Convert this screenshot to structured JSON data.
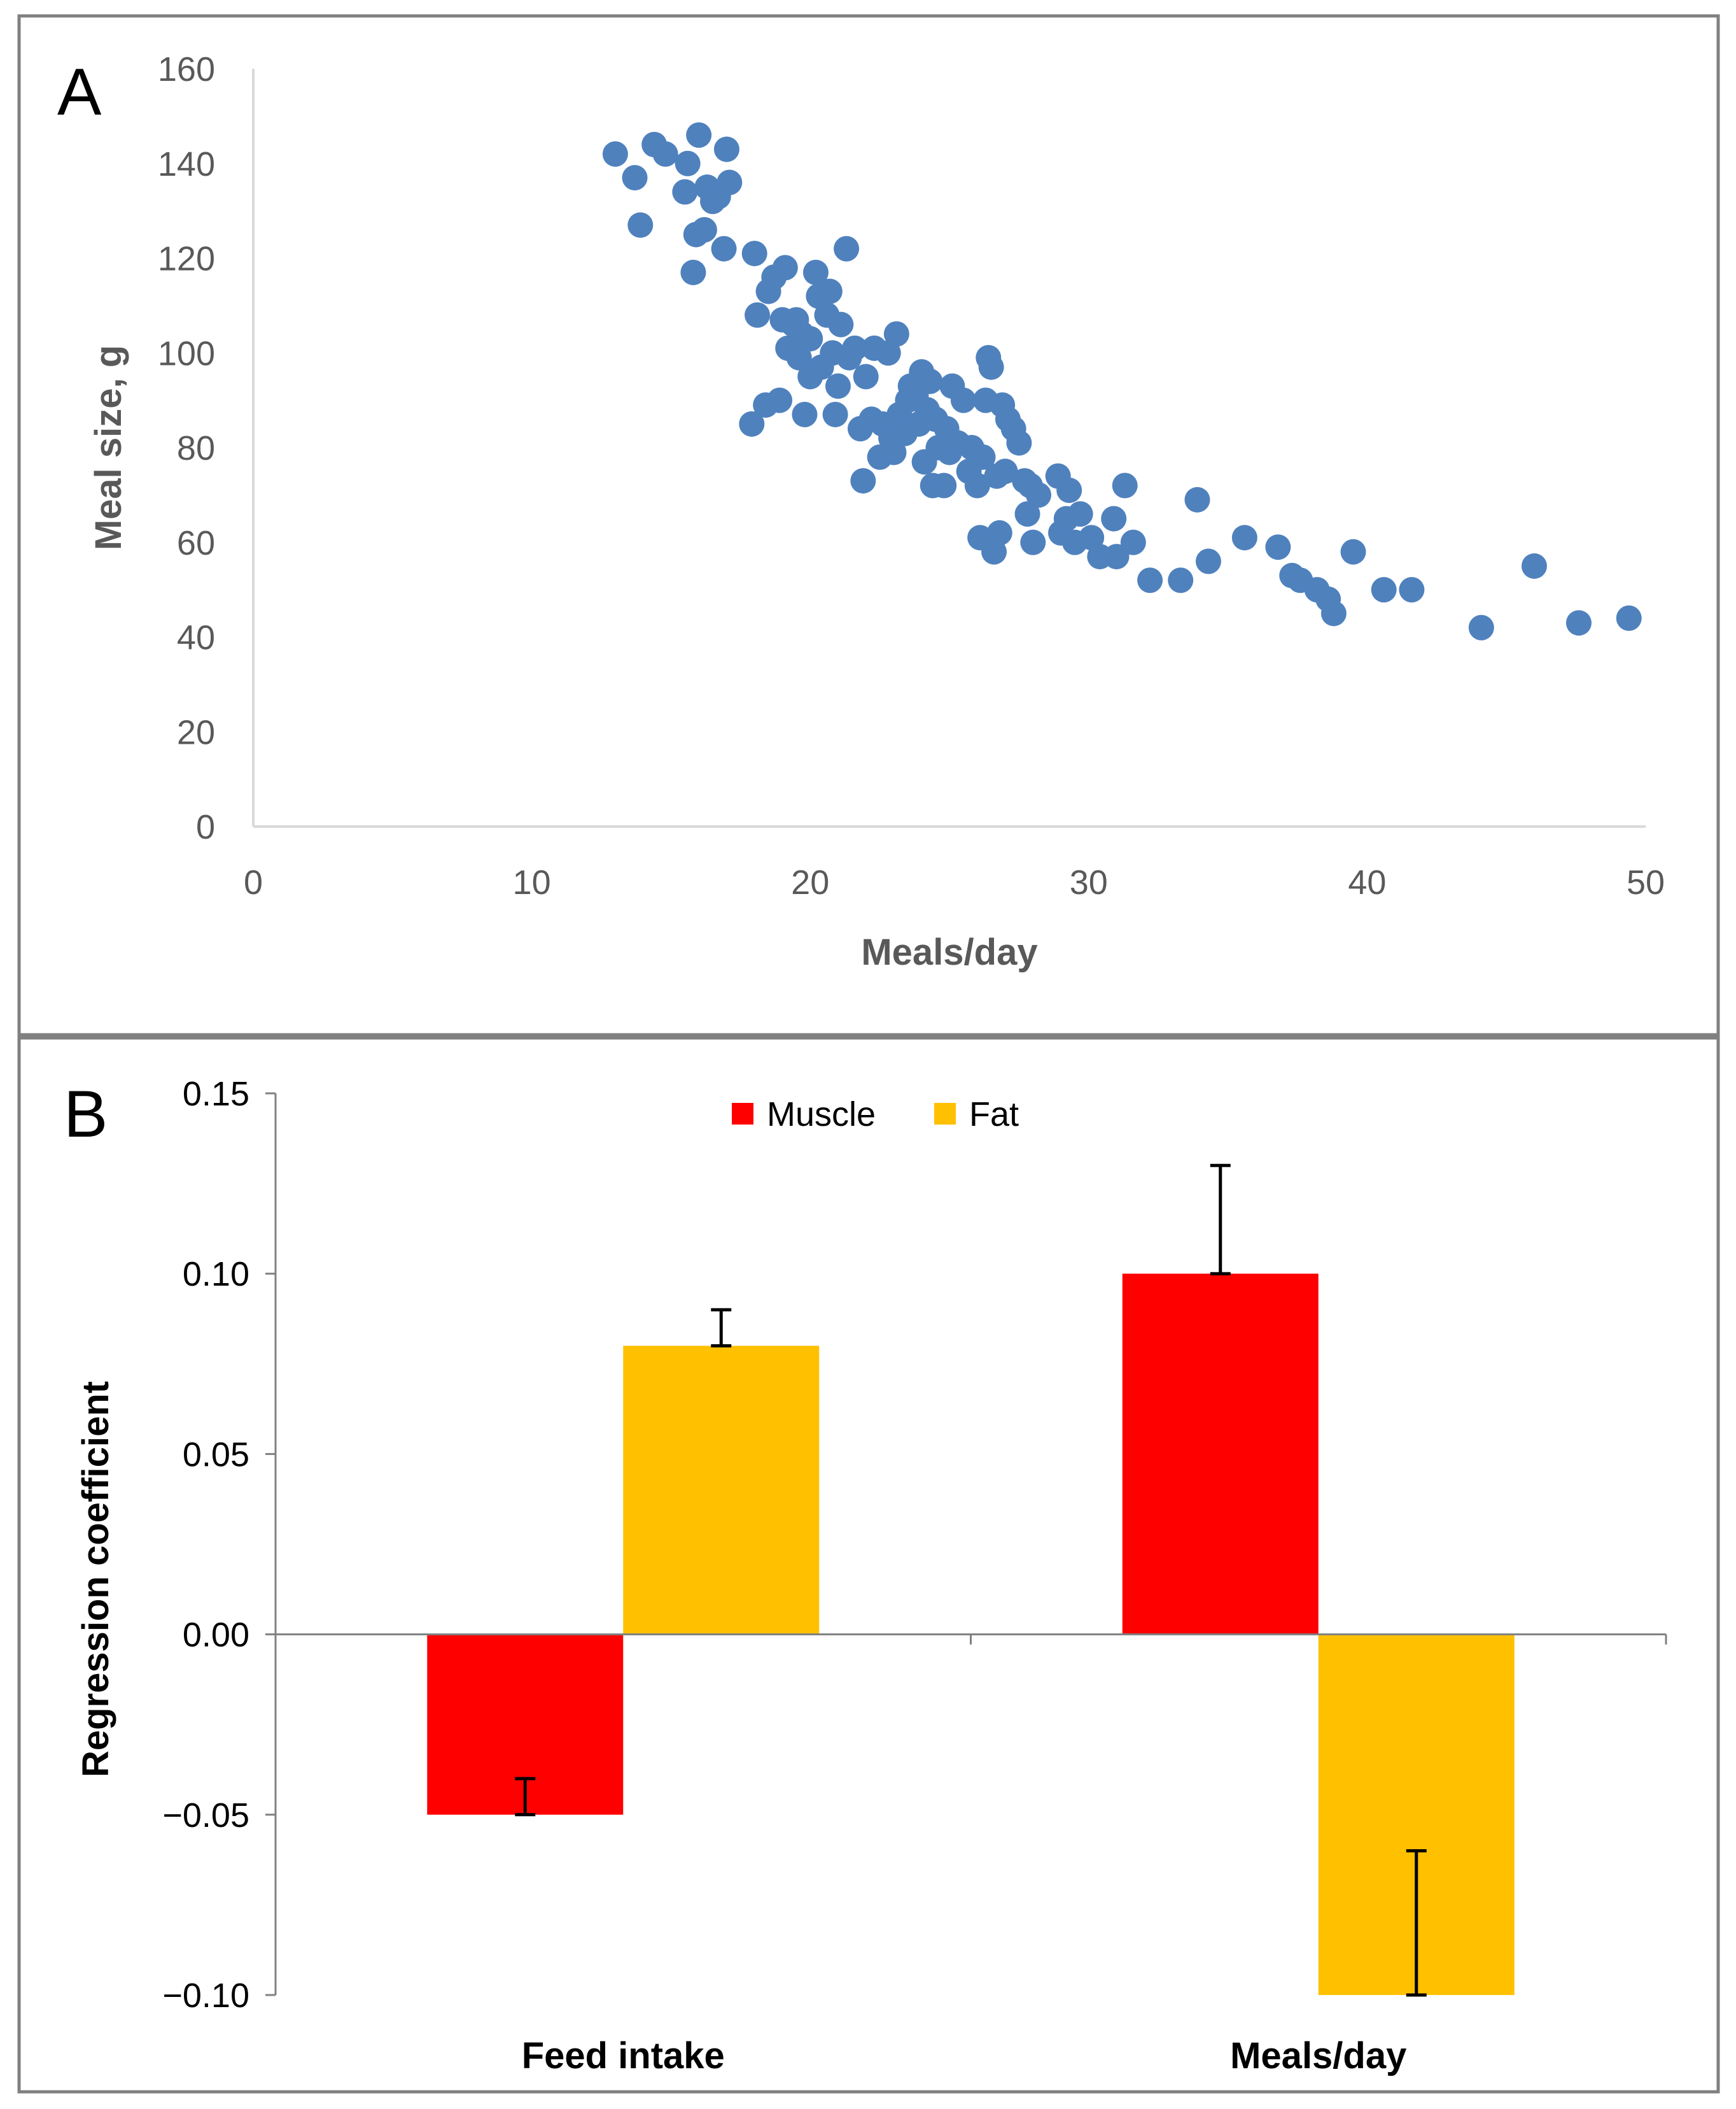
{
  "panel_labels": {
    "a": "A",
    "b": "B"
  },
  "colors": {
    "points": "#4f81bd",
    "muscle": "#ff0000",
    "fat": "#ffc000",
    "axis": "#d9d9d9",
    "frame": "#808080"
  },
  "chart_data": [
    {
      "type": "scatter",
      "panel": "A",
      "title": "",
      "xlabel": "Meals/day",
      "ylabel": "Meal size, g",
      "xlim": [
        0,
        50
      ],
      "ylim": [
        0,
        160
      ],
      "xticks": [
        0,
        10,
        20,
        30,
        40,
        50
      ],
      "yticks": [
        0,
        20,
        40,
        60,
        80,
        100,
        120,
        140,
        160
      ],
      "grid": false,
      "points": [
        [
          13.0,
          142
        ],
        [
          13.7,
          137
        ],
        [
          13.9,
          127
        ],
        [
          14.4,
          144
        ],
        [
          14.8,
          142
        ],
        [
          15.5,
          134
        ],
        [
          15.6,
          140
        ],
        [
          15.8,
          117
        ],
        [
          15.9,
          125
        ],
        [
          16.0,
          146
        ],
        [
          16.2,
          126
        ],
        [
          16.3,
          135
        ],
        [
          16.5,
          132
        ],
        [
          16.7,
          133
        ],
        [
          16.9,
          122
        ],
        [
          17.0,
          143
        ],
        [
          17.1,
          136
        ],
        [
          17.9,
          85
        ],
        [
          18.0,
          121
        ],
        [
          18.1,
          108
        ],
        [
          18.4,
          89
        ],
        [
          18.5,
          113
        ],
        [
          18.7,
          116
        ],
        [
          18.9,
          90
        ],
        [
          19.0,
          107
        ],
        [
          19.1,
          118
        ],
        [
          19.2,
          101
        ],
        [
          19.4,
          106
        ],
        [
          19.5,
          107
        ],
        [
          19.6,
          99
        ],
        [
          19.7,
          104
        ],
        [
          19.8,
          87
        ],
        [
          20.0,
          95
        ],
        [
          20.0,
          103
        ],
        [
          20.2,
          117
        ],
        [
          20.3,
          112
        ],
        [
          20.4,
          97
        ],
        [
          20.6,
          108
        ],
        [
          20.7,
          113
        ],
        [
          20.8,
          100
        ],
        [
          20.9,
          87
        ],
        [
          21.0,
          93
        ],
        [
          21.1,
          106
        ],
        [
          21.3,
          122
        ],
        [
          21.4,
          99
        ],
        [
          21.6,
          101
        ],
        [
          21.8,
          84
        ],
        [
          21.9,
          73
        ],
        [
          22.0,
          95
        ],
        [
          22.2,
          86
        ],
        [
          22.3,
          101
        ],
        [
          22.5,
          78
        ],
        [
          22.6,
          85
        ],
        [
          22.8,
          100
        ],
        [
          22.9,
          82
        ],
        [
          23.0,
          79
        ],
        [
          23.1,
          104
        ],
        [
          23.2,
          87
        ],
        [
          23.4,
          83
        ],
        [
          23.5,
          90
        ],
        [
          23.6,
          93
        ],
        [
          23.8,
          91
        ],
        [
          23.9,
          85
        ],
        [
          24.0,
          96
        ],
        [
          24.1,
          77
        ],
        [
          24.2,
          88
        ],
        [
          24.3,
          94
        ],
        [
          24.4,
          72
        ],
        [
          24.5,
          86
        ],
        [
          24.6,
          80
        ],
        [
          24.8,
          72
        ],
        [
          24.9,
          84
        ],
        [
          25.0,
          79
        ],
        [
          25.1,
          93
        ],
        [
          25.3,
          81
        ],
        [
          25.5,
          90
        ],
        [
          25.7,
          75
        ],
        [
          25.8,
          80
        ],
        [
          26.0,
          72
        ],
        [
          26.1,
          61
        ],
        [
          26.2,
          78
        ],
        [
          26.3,
          90
        ],
        [
          26.4,
          99
        ],
        [
          26.5,
          97
        ],
        [
          26.6,
          58
        ],
        [
          26.7,
          74
        ],
        [
          26.8,
          62
        ],
        [
          26.9,
          89
        ],
        [
          27.0,
          75
        ],
        [
          27.1,
          86
        ],
        [
          27.3,
          84
        ],
        [
          27.5,
          81
        ],
        [
          27.7,
          73
        ],
        [
          27.8,
          66
        ],
        [
          27.9,
          72
        ],
        [
          28.0,
          60
        ],
        [
          28.2,
          70
        ],
        [
          28.9,
          74
        ],
        [
          29.0,
          62
        ],
        [
          29.2,
          65
        ],
        [
          29.3,
          71
        ],
        [
          29.5,
          60
        ],
        [
          29.7,
          66
        ],
        [
          30.1,
          61
        ],
        [
          30.4,
          57
        ],
        [
          30.9,
          65
        ],
        [
          31.0,
          57
        ],
        [
          31.3,
          72
        ],
        [
          31.6,
          60
        ],
        [
          32.2,
          52
        ],
        [
          33.3,
          52
        ],
        [
          33.9,
          69
        ],
        [
          34.3,
          56
        ],
        [
          35.6,
          61
        ],
        [
          36.8,
          59
        ],
        [
          37.3,
          53
        ],
        [
          37.6,
          52
        ],
        [
          38.2,
          50
        ],
        [
          38.6,
          48
        ],
        [
          38.8,
          45
        ],
        [
          39.5,
          58
        ],
        [
          40.6,
          50
        ],
        [
          41.6,
          50
        ],
        [
          44.1,
          42
        ],
        [
          46.0,
          55
        ],
        [
          47.6,
          43
        ],
        [
          49.4,
          44
        ]
      ]
    },
    {
      "type": "bar",
      "panel": "B",
      "title": "",
      "xlabel": "",
      "ylabel": "Regression coefficient",
      "categories": [
        "Feed intake",
        "Meals/day"
      ],
      "ylim": [
        -0.1,
        0.15
      ],
      "yticks": [
        0.15,
        0.1,
        0.05,
        0.0,
        -0.05,
        -0.1
      ],
      "ytick_labels": [
        "0.15",
        "0.10",
        "0.05",
        "0.00",
        "−0.05",
        "−0.10"
      ],
      "legend_position": "top-center",
      "grid": false,
      "series": [
        {
          "name": "Muscle",
          "values": [
            -0.05,
            0.1
          ],
          "errors": [
            0.01,
            0.03
          ],
          "error_dir": [
            "up",
            "up"
          ]
        },
        {
          "name": "Fat",
          "values": [
            0.08,
            -0.1
          ],
          "errors": [
            0.01,
            0.04
          ],
          "error_dir": [
            "up",
            "up"
          ]
        }
      ]
    }
  ]
}
